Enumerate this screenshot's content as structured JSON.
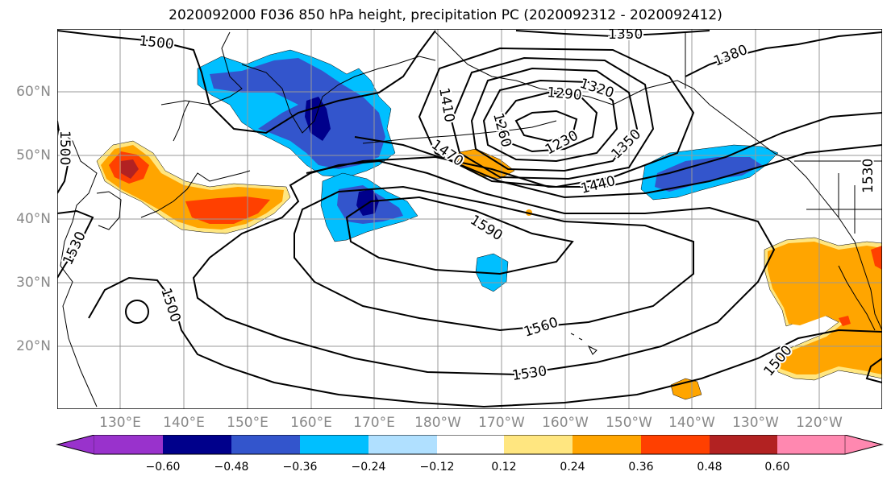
{
  "title": "2020092000 F036 850 hPa height, precipitation PC (2020092312 - 2020092412)",
  "lat_labels": [
    "60°N",
    "50°N",
    "40°N",
    "30°N",
    "20°N"
  ],
  "lon_labels": [
    "130°E",
    "140°E",
    "150°E",
    "160°E",
    "170°E",
    "180°W",
    "170°W",
    "160°W",
    "150°W",
    "140°W",
    "130°W",
    "120°W"
  ],
  "contour_labels": [
    "1500",
    "1350",
    "1380",
    "1320",
    "1290",
    "1260",
    "1230",
    "1410",
    "1470",
    "1350",
    "1440",
    "1590",
    "1530",
    "1500",
    "1560",
    "1530",
    "1500",
    "1500",
    "1530"
  ],
  "colorbar": {
    "ticks": [
      "−0.60",
      "−0.48",
      "−0.36",
      "−0.24",
      "−0.12",
      "0.12",
      "0.24",
      "0.36",
      "0.48",
      "0.60"
    ],
    "colors": [
      "#9932cc",
      "#00008b",
      "#3355cc",
      "#00bfff",
      "#b0e0ff",
      "#ffffff",
      "#ffe680",
      "#ffa500",
      "#ff4000",
      "#b22222",
      "#ff88b0"
    ]
  },
  "colors": {
    "purple": "#9932cc",
    "navy": "#00008b",
    "blue": "#3355cc",
    "cyan": "#00bfff",
    "lightblue": "#b0e0ff",
    "yellow": "#ffe680",
    "orange": "#ffa500",
    "redorange": "#ff4000",
    "darkred": "#b22222",
    "pink": "#ff88b0"
  }
}
